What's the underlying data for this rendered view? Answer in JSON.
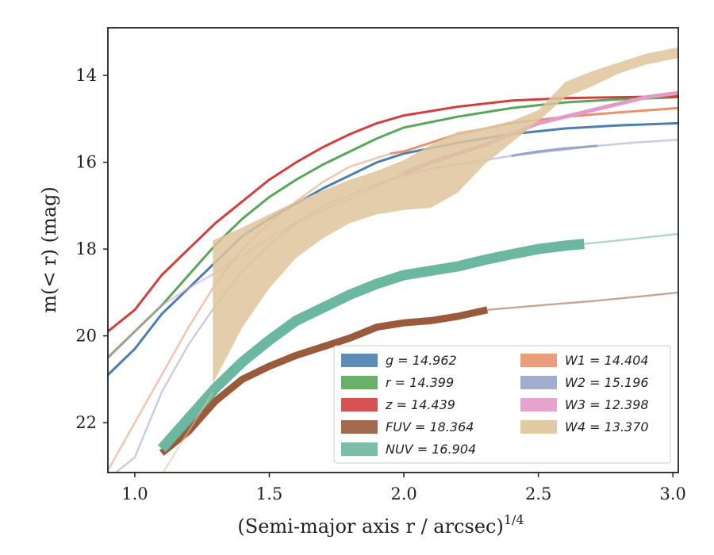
{
  "chart_data": {
    "type": "line",
    "title": "",
    "xlabel": "(Semi-major axis r / arcsec)",
    "xlabel_exp": "1/4",
    "ylabel": "m(< r) (mag)",
    "xlim": [
      0.9,
      3.02
    ],
    "ylim": [
      23.15,
      12.9
    ],
    "y_inverted": true,
    "xticks": [
      "1.0",
      "1.5",
      "2.0",
      "2.5",
      "3.0"
    ],
    "yticks": [
      "14",
      "16",
      "18",
      "20",
      "22"
    ],
    "xtick_values": [
      1.0,
      1.5,
      2.0,
      2.5,
      3.0
    ],
    "ytick_values": [
      14,
      16,
      18,
      20,
      22
    ],
    "grid": false,
    "legend_position": "lower-right",
    "series": [
      {
        "name": "g = 14.962",
        "color": "#4c7fb0",
        "solid_x": [
          0.9,
          1.0,
          1.1,
          1.2,
          1.3,
          1.4,
          1.5,
          1.6,
          1.7,
          1.8,
          1.9,
          2.0,
          2.2,
          2.4,
          2.6,
          2.8,
          3.02
        ],
        "solid_y": [
          20.9,
          20.3,
          19.5,
          18.9,
          18.3,
          17.7,
          17.3,
          16.95,
          16.6,
          16.3,
          16.0,
          15.8,
          15.55,
          15.35,
          15.22,
          15.15,
          15.1
        ],
        "faint_x": [],
        "faint_y": [],
        "width": 3
      },
      {
        "name": "r = 14.399",
        "color": "#5aa65a",
        "solid_x": [
          0.9,
          1.0,
          1.1,
          1.2,
          1.3,
          1.4,
          1.5,
          1.6,
          1.7,
          1.8,
          1.9,
          2.0,
          2.2,
          2.4,
          2.6,
          2.8,
          3.02
        ],
        "solid_y": [
          20.5,
          19.9,
          19.3,
          18.6,
          17.9,
          17.3,
          16.8,
          16.4,
          16.05,
          15.75,
          15.45,
          15.2,
          14.95,
          14.75,
          14.62,
          14.55,
          14.5
        ],
        "faint_x": [],
        "faint_y": [],
        "width": 3
      },
      {
        "name": "z = 14.439",
        "color": "#d13f3f",
        "solid_x": [
          0.9,
          1.0,
          1.1,
          1.2,
          1.3,
          1.4,
          1.5,
          1.6,
          1.7,
          1.8,
          1.9,
          2.0,
          2.2,
          2.4,
          2.6,
          2.8,
          3.02
        ],
        "solid_y": [
          19.9,
          19.4,
          18.6,
          18.0,
          17.4,
          16.9,
          16.4,
          16.0,
          15.65,
          15.35,
          15.1,
          14.92,
          14.72,
          14.58,
          14.52,
          14.5,
          14.48
        ],
        "faint_x": [],
        "faint_y": [],
        "width": 3
      },
      {
        "name": "FUV = 18.364",
        "color": "#9a5a3c",
        "solid_x": [
          1.1,
          1.2,
          1.3,
          1.4,
          1.5,
          1.6,
          1.7,
          1.8,
          1.9,
          2.0,
          2.1,
          2.2,
          2.31
        ],
        "solid_y": [
          22.7,
          22.2,
          21.5,
          21.0,
          20.7,
          20.45,
          20.25,
          20.05,
          19.8,
          19.7,
          19.65,
          19.55,
          19.4
        ],
        "faint_x": [
          2.31,
          2.5,
          2.7,
          2.9,
          3.02
        ],
        "faint_y": [
          19.4,
          19.3,
          19.2,
          19.08,
          19.0
        ],
        "width": 9
      },
      {
        "name": "NUV = 16.904",
        "color": "#6cb7a0",
        "solid_x": [
          1.1,
          1.2,
          1.3,
          1.4,
          1.5,
          1.6,
          1.7,
          1.8,
          1.9,
          2.0,
          2.1,
          2.2,
          2.3,
          2.4,
          2.5,
          2.6,
          2.67
        ],
        "solid_y": [
          22.6,
          21.9,
          21.2,
          20.6,
          20.1,
          19.65,
          19.35,
          19.05,
          18.8,
          18.6,
          18.5,
          18.4,
          18.25,
          18.12,
          18.0,
          17.92,
          17.88
        ],
        "faint_x": [
          2.67,
          2.8,
          3.02
        ],
        "faint_y": [
          17.88,
          17.8,
          17.65
        ],
        "width": 13
      },
      {
        "name": "W1 = 14.404",
        "color": "#e8916e",
        "solid_x": [
          1.95,
          2.0,
          2.2,
          2.4,
          2.6,
          2.8,
          3.02
        ],
        "solid_y": [
          15.8,
          15.75,
          15.35,
          15.1,
          14.95,
          14.85,
          14.75
        ],
        "faint_x": [
          0.9,
          1.0,
          1.1,
          1.2,
          1.3,
          1.4,
          1.5,
          1.6,
          1.7,
          1.8,
          1.95
        ],
        "faint_y": [
          23.1,
          22.0,
          20.9,
          19.8,
          18.8,
          18.0,
          17.4,
          16.9,
          16.45,
          16.1,
          15.8
        ],
        "width": 3
      },
      {
        "name": "W2 = 15.196",
        "color": "#98a4c8",
        "solid_x": [
          2.4,
          2.5,
          2.6,
          2.72
        ],
        "solid_y": [
          15.85,
          15.75,
          15.68,
          15.62
        ],
        "faint_x": [
          0.9,
          1.0,
          1.1,
          1.2,
          1.3,
          1.4,
          1.5,
          1.6,
          1.7,
          1.8,
          1.9,
          2.0,
          2.1,
          2.2,
          2.3,
          2.4,
          2.72,
          2.85,
          3.02
        ],
        "faint_y": [
          23.3,
          22.8,
          21.3,
          20.2,
          19.3,
          18.5,
          17.9,
          17.4,
          17.0,
          16.75,
          16.5,
          16.3,
          16.15,
          16.05,
          15.95,
          15.85,
          15.62,
          15.55,
          15.48
        ],
        "width": 3
      },
      {
        "name": "W3 = 12.398",
        "color": "#e39ac8",
        "solid_x": [
          2.0,
          2.1,
          2.2,
          2.3,
          2.4,
          2.5,
          2.6,
          2.7,
          2.8,
          2.9,
          3.02
        ],
        "solid_y": [
          16.25,
          16.0,
          15.8,
          15.6,
          15.35,
          15.1,
          14.95,
          14.8,
          14.65,
          14.5,
          14.4
        ],
        "faint_x": [
          0.9,
          1.0,
          1.1,
          1.2,
          1.3,
          1.4,
          1.5,
          1.6,
          1.7,
          1.8,
          1.9,
          2.0
        ],
        "faint_y": [
          20.5,
          19.9,
          19.3,
          18.9,
          18.55,
          18.15,
          17.75,
          17.4,
          17.1,
          16.85,
          16.55,
          16.25
        ],
        "width": 5
      },
      {
        "name": "W4 = 13.370",
        "color": "#dfc49c",
        "solid_x": [],
        "solid_y": [],
        "faint_x": [
          1.1,
          1.2,
          1.29
        ],
        "faint_y": [
          23.2,
          22.2,
          21.3
        ],
        "band_x": [
          1.29,
          1.4,
          1.5,
          1.6,
          1.7,
          1.8,
          1.9,
          2.0,
          2.1,
          2.2,
          2.3,
          2.4,
          2.5,
          2.6,
          2.7,
          2.8,
          2.9,
          3.02
        ],
        "band_upper": [
          17.8,
          17.5,
          17.2,
          16.9,
          16.65,
          16.4,
          16.2,
          15.95,
          15.6,
          15.3,
          15.2,
          15.05,
          14.8,
          14.15,
          13.9,
          13.7,
          13.5,
          13.35
        ],
        "band_lower": [
          21.1,
          19.8,
          18.9,
          18.2,
          17.75,
          17.4,
          17.2,
          17.1,
          17.05,
          16.7,
          16.05,
          15.55,
          15.05,
          14.5,
          14.25,
          13.95,
          13.75,
          13.6
        ],
        "width": 0
      }
    ]
  }
}
